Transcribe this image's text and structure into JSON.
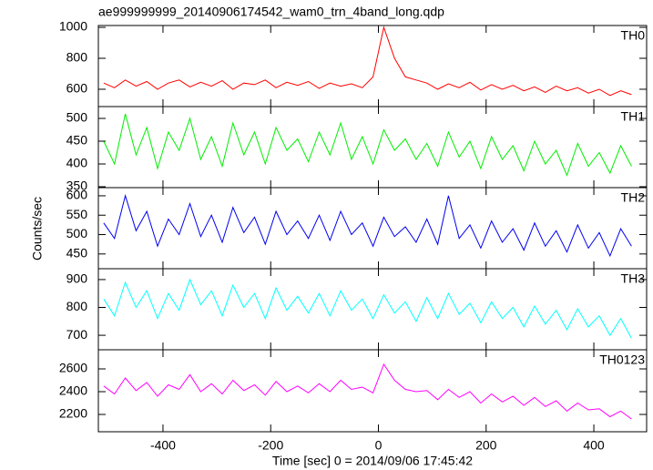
{
  "chart_data": [
    {
      "type": "line",
      "title": "ae999999999_20140906174542_wam0_trn_4band_long.qdp",
      "label": "TH0",
      "color": "#ff0000",
      "x": [
        -510,
        -490,
        -470,
        -450,
        -430,
        -410,
        -390,
        -370,
        -350,
        -330,
        -310,
        -290,
        -270,
        -250,
        -230,
        -210,
        -190,
        -170,
        -150,
        -130,
        -110,
        -90,
        -70,
        -50,
        -30,
        -10,
        10,
        30,
        50,
        70,
        90,
        110,
        130,
        150,
        170,
        190,
        210,
        230,
        250,
        270,
        290,
        310,
        330,
        350,
        370,
        390,
        410,
        430,
        450,
        470
      ],
      "values": [
        640,
        610,
        660,
        620,
        650,
        600,
        640,
        660,
        615,
        645,
        620,
        655,
        600,
        640,
        630,
        660,
        610,
        645,
        625,
        650,
        605,
        640,
        620,
        635,
        610,
        680,
        1000,
        800,
        680,
        660,
        640,
        600,
        635,
        610,
        645,
        595,
        630,
        600,
        625,
        590,
        615,
        580,
        620,
        590,
        610,
        575,
        600,
        560,
        590,
        565
      ],
      "xlim": [
        -520,
        498
      ],
      "xticks": [
        -400,
        -200,
        0,
        200,
        400
      ],
      "ylim": [
        488,
        1012
      ],
      "yticks": [
        600,
        800,
        1000
      ]
    },
    {
      "type": "line",
      "label": "TH1",
      "color": "#00ee00",
      "x": [
        -510,
        -490,
        -470,
        -450,
        -430,
        -410,
        -390,
        -370,
        -350,
        -330,
        -310,
        -290,
        -270,
        -250,
        -230,
        -210,
        -190,
        -170,
        -150,
        -130,
        -110,
        -90,
        -70,
        -50,
        -30,
        -10,
        10,
        30,
        50,
        70,
        90,
        110,
        130,
        150,
        170,
        190,
        210,
        230,
        250,
        270,
        290,
        310,
        330,
        350,
        370,
        390,
        410,
        430,
        450,
        470
      ],
      "values": [
        450,
        400,
        510,
        420,
        480,
        390,
        470,
        430,
        500,
        410,
        460,
        395,
        490,
        420,
        470,
        400,
        480,
        430,
        455,
        405,
        470,
        420,
        490,
        410,
        460,
        400,
        475,
        430,
        455,
        410,
        445,
        395,
        470,
        415,
        450,
        390,
        460,
        410,
        440,
        385,
        450,
        400,
        430,
        375,
        445,
        395,
        425,
        380,
        440,
        395
      ],
      "xlim": [
        -520,
        498
      ],
      "xticks": [
        -400,
        -200,
        0,
        200,
        400
      ],
      "ylim": [
        348,
        526
      ],
      "yticks": [
        350,
        400,
        450,
        500
      ]
    },
    {
      "type": "line",
      "label": "TH2",
      "color": "#0000ee",
      "ylabel": "Counts/sec",
      "x": [
        -510,
        -490,
        -470,
        -450,
        -430,
        -410,
        -390,
        -370,
        -350,
        -330,
        -310,
        -290,
        -270,
        -250,
        -230,
        -210,
        -190,
        -170,
        -150,
        -130,
        -110,
        -90,
        -70,
        -50,
        -30,
        -10,
        10,
        30,
        50,
        70,
        90,
        110,
        130,
        150,
        170,
        190,
        210,
        230,
        250,
        270,
        290,
        310,
        330,
        350,
        370,
        390,
        410,
        430,
        450,
        470
      ],
      "values": [
        530,
        490,
        600,
        510,
        560,
        470,
        540,
        500,
        580,
        495,
        550,
        480,
        570,
        505,
        545,
        475,
        560,
        500,
        535,
        490,
        550,
        485,
        560,
        500,
        530,
        470,
        545,
        495,
        520,
        480,
        540,
        475,
        600,
        490,
        525,
        465,
        535,
        480,
        515,
        460,
        530,
        470,
        510,
        455,
        525,
        465,
        505,
        445,
        515,
        470
      ],
      "xlim": [
        -520,
        498
      ],
      "xticks": [
        -400,
        -200,
        0,
        200,
        400
      ],
      "ylim": [
        412,
        621
      ],
      "yticks": [
        450,
        500,
        550,
        600
      ]
    },
    {
      "type": "line",
      "label": "TH3",
      "color": "#00ffff",
      "x": [
        -510,
        -490,
        -470,
        -450,
        -430,
        -410,
        -390,
        -370,
        -350,
        -330,
        -310,
        -290,
        -270,
        -250,
        -230,
        -210,
        -190,
        -170,
        -150,
        -130,
        -110,
        -90,
        -70,
        -50,
        -30,
        -10,
        10,
        30,
        50,
        70,
        90,
        110,
        130,
        150,
        170,
        190,
        210,
        230,
        250,
        270,
        290,
        310,
        330,
        350,
        370,
        390,
        410,
        430,
        450,
        470
      ],
      "values": [
        830,
        770,
        890,
        800,
        860,
        760,
        850,
        790,
        900,
        810,
        860,
        770,
        880,
        800,
        850,
        760,
        870,
        790,
        840,
        780,
        850,
        770,
        860,
        790,
        830,
        760,
        845,
        780,
        820,
        750,
        835,
        760,
        850,
        775,
        815,
        745,
        820,
        760,
        800,
        730,
        805,
        740,
        790,
        720,
        795,
        730,
        770,
        700,
        760,
        690
      ],
      "xlim": [
        -520,
        498
      ],
      "xticks": [
        -400,
        -200,
        0,
        200,
        400
      ],
      "ylim": [
        648,
        939
      ],
      "yticks": [
        700,
        800,
        900
      ]
    },
    {
      "type": "line",
      "label": "TH0123",
      "color": "#ff00ff",
      "xlabel": "Time [sec] 0 = 2014/09/06 17:45:42",
      "x": [
        -510,
        -490,
        -470,
        -450,
        -430,
        -410,
        -390,
        -370,
        -350,
        -330,
        -310,
        -290,
        -270,
        -250,
        -230,
        -210,
        -190,
        -170,
        -150,
        -130,
        -110,
        -90,
        -70,
        -50,
        -30,
        -10,
        10,
        30,
        50,
        70,
        90,
        110,
        130,
        150,
        170,
        190,
        210,
        230,
        250,
        270,
        290,
        310,
        330,
        350,
        370,
        390,
        410,
        430,
        450,
        470
      ],
      "values": [
        2450,
        2380,
        2520,
        2410,
        2480,
        2360,
        2460,
        2420,
        2550,
        2400,
        2470,
        2380,
        2500,
        2410,
        2460,
        2370,
        2490,
        2400,
        2450,
        2390,
        2470,
        2400,
        2500,
        2420,
        2440,
        2390,
        2640,
        2500,
        2420,
        2400,
        2410,
        2330,
        2420,
        2350,
        2400,
        2300,
        2380,
        2310,
        2360,
        2280,
        2350,
        2270,
        2320,
        2230,
        2300,
        2240,
        2250,
        2180,
        2230,
        2160
      ],
      "xlim": [
        -520,
        498
      ],
      "xticks": [
        -400,
        -200,
        0,
        200,
        400
      ],
      "ylim": [
        2048,
        2768
      ],
      "yticks": [
        2200,
        2400,
        2600
      ]
    }
  ]
}
